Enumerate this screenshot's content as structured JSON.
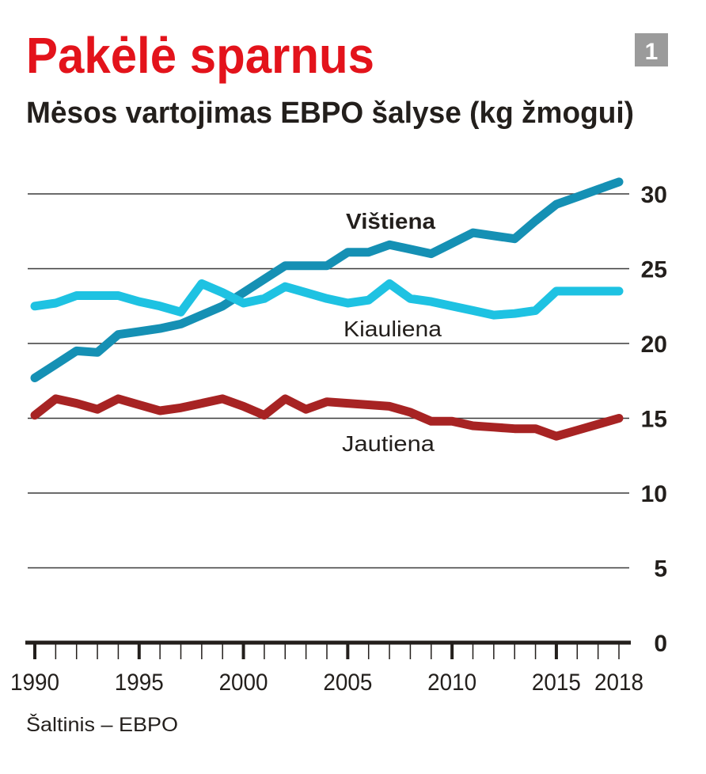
{
  "title": "Pakėlė sparnus",
  "badge": "1",
  "source": "Šaltinis – EBPO",
  "colors": {
    "title": "#e3131b",
    "badge": "#9b9b9b",
    "chicken": "#1590b4",
    "pork": "#1ec2e2",
    "beef": "#a72323"
  },
  "chart_data": {
    "type": "line",
    "title": "Mėsos vartojimas EBPO šalyse (kg žmogui)",
    "xlabel": "",
    "ylabel": "",
    "ylim": [
      0,
      30
    ],
    "yticks": [
      "0",
      "5",
      "10",
      "15",
      "20",
      "25",
      "30"
    ],
    "xlim": [
      1990,
      2018
    ],
    "xticks": [
      "1990",
      "1995",
      "2000",
      "2005",
      "2010",
      "2015",
      "2018"
    ],
    "grid": true,
    "x": [
      1990,
      1991,
      1992,
      1993,
      1994,
      1995,
      1996,
      1997,
      1998,
      1999,
      2000,
      2001,
      2002,
      2003,
      2004,
      2005,
      2006,
      2007,
      2008,
      2009,
      2010,
      2011,
      2012,
      2013,
      2014,
      2015,
      2016,
      2017,
      2018
    ],
    "series": [
      {
        "name": "Vištiena",
        "values": [
          17.7,
          18.6,
          19.5,
          19.4,
          20.6,
          20.8,
          21.0,
          21.3,
          21.9,
          22.5,
          23.4,
          24.3,
          25.2,
          25.2,
          25.2,
          26.1,
          26.1,
          26.6,
          26.3,
          26.0,
          26.7,
          27.4,
          27.2,
          27.0,
          28.2,
          29.3,
          29.8,
          30.3,
          30.8
        ]
      },
      {
        "name": "Kiauliena",
        "values": [
          22.5,
          22.7,
          23.2,
          23.2,
          23.2,
          22.8,
          22.5,
          22.1,
          24.0,
          23.4,
          22.7,
          23.0,
          23.8,
          23.4,
          23.0,
          22.7,
          22.9,
          24.0,
          23.0,
          22.8,
          22.5,
          22.2,
          21.9,
          22.0,
          22.2,
          23.5,
          23.5,
          23.5,
          23.5
        ]
      },
      {
        "name": "Jautiena",
        "values": [
          15.2,
          16.3,
          16.0,
          15.6,
          16.3,
          15.9,
          15.5,
          15.7,
          16.0,
          16.3,
          15.8,
          15.2,
          16.3,
          15.6,
          16.1,
          16.0,
          15.9,
          15.8,
          15.4,
          14.8,
          14.8,
          14.5,
          14.4,
          14.3,
          14.3,
          13.8,
          14.2,
          14.6,
          15.0
        ]
      }
    ]
  }
}
